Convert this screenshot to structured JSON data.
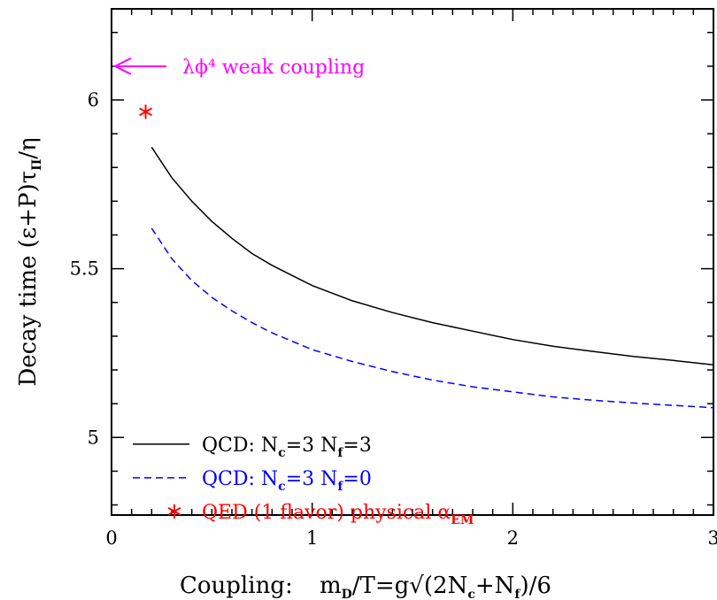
{
  "chart_data": {
    "type": "line",
    "xlabel_prefix": "Coupling:",
    "xlabel_formula": [
      "m",
      "D",
      "/T=g√(2N",
      "c",
      "+N",
      "f",
      ")/6"
    ],
    "ylabel": [
      "Decay time (ε+P)τ",
      "Π",
      "/η"
    ],
    "xlim": [
      0,
      3
    ],
    "ylim": [
      4.77,
      6.27
    ],
    "xticks": [
      0,
      1,
      2,
      3
    ],
    "xtick_labels": [
      "0",
      "1",
      "2",
      "3"
    ],
    "yticks": [
      5,
      5.5,
      6
    ],
    "ytick_labels": [
      "5",
      "5.5",
      "6"
    ],
    "grid": false,
    "legend_position": "bottom-left",
    "series": [
      {
        "name": [
          "QCD: N",
          "c",
          "=3 N",
          "f",
          "=3"
        ],
        "color": "#000000",
        "style": "solid",
        "x": [
          0.2,
          0.3,
          0.4,
          0.5,
          0.6,
          0.7,
          0.8,
          0.9,
          1.0,
          1.2,
          1.4,
          1.6,
          1.8,
          2.0,
          2.2,
          2.4,
          2.6,
          2.8,
          3.0
        ],
        "y": [
          5.86,
          5.77,
          5.7,
          5.64,
          5.59,
          5.545,
          5.51,
          5.48,
          5.45,
          5.405,
          5.37,
          5.34,
          5.315,
          5.29,
          5.27,
          5.255,
          5.24,
          5.228,
          5.215
        ]
      },
      {
        "name": [
          "QCD: N",
          "c",
          "=3 N",
          "f",
          "=0"
        ],
        "color": "#0000ff",
        "style": "dashed",
        "x": [
          0.2,
          0.3,
          0.4,
          0.5,
          0.6,
          0.7,
          0.8,
          0.9,
          1.0,
          1.2,
          1.4,
          1.6,
          1.8,
          2.0,
          2.2,
          2.4,
          2.6,
          2.8,
          3.0
        ],
        "y": [
          5.62,
          5.53,
          5.465,
          5.415,
          5.375,
          5.34,
          5.31,
          5.285,
          5.26,
          5.225,
          5.195,
          5.17,
          5.15,
          5.135,
          5.12,
          5.11,
          5.102,
          5.095,
          5.088
        ]
      },
      {
        "name": [
          "QED (1 flavor) physical α",
          "EM",
          ""
        ],
        "color": "#ff0000",
        "style": "marker-asterisk",
        "x": [
          0.17
        ],
        "y": [
          5.965
        ]
      }
    ],
    "annotations": [
      {
        "text": "λϕ⁴ weak coupling",
        "color": "#ff00ff",
        "arrow_to_y": 6.1,
        "arrow_to_x": 0.0
      }
    ]
  }
}
